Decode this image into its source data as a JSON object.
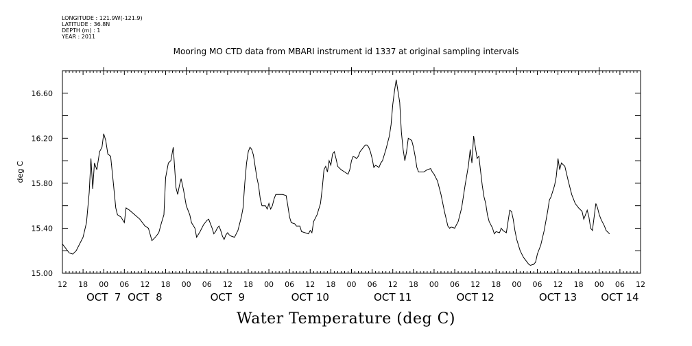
{
  "header": {
    "longitude": "LONGITUDE : 121.9W(-121.9)",
    "latitude": "LATITUDE : 36.8N",
    "depth": "DEPTH (m) : 1",
    "year": "YEAR : 2011"
  },
  "chart_data": {
    "type": "line",
    "title": "Mooring MO CTD data from MBARI instrument id 1337 at original sampling intervals",
    "xlabel": "Water Temperature (deg C)",
    "ylabel": "deg C",
    "ylim": [
      15.0,
      16.8
    ],
    "xlim_hours": [
      12,
      180
    ],
    "yticks": [
      15.0,
      15.4,
      15.8,
      16.2,
      16.6
    ],
    "ytick_labels": [
      "15.00",
      "15.40",
      "15.80",
      "16.20",
      "16.60"
    ],
    "hour_ticks": [
      "12",
      "18",
      "00",
      "06",
      "12",
      "18",
      "00",
      "06",
      "12",
      "18",
      "00",
      "06",
      "12",
      "18",
      "00",
      "06",
      "12",
      "18",
      "00",
      "06",
      "12",
      "18",
      "00",
      "06",
      "12",
      "18",
      "00",
      "06",
      "12"
    ],
    "day_labels": [
      {
        "label": "OCT  7",
        "hour": 24
      },
      {
        "label": "OCT  8",
        "hour": 36
      },
      {
        "label": "OCT  9",
        "hour": 60
      },
      {
        "label": "OCT 10",
        "hour": 84
      },
      {
        "label": "OCT 11",
        "hour": 108
      },
      {
        "label": "OCT 12",
        "hour": 132
      },
      {
        "label": "OCT 13",
        "hour": 156
      },
      {
        "label": "OCT 14",
        "hour": 174
      }
    ],
    "grid": false,
    "series": [
      {
        "color": "#000000",
        "points": [
          [
            12,
            15.26
          ],
          [
            13,
            15.22
          ],
          [
            14,
            15.18
          ],
          [
            15,
            15.17
          ],
          [
            16,
            15.2
          ],
          [
            17,
            15.26
          ],
          [
            18,
            15.32
          ],
          [
            19,
            15.45
          ],
          [
            19.8,
            15.72
          ],
          [
            20.3,
            16.02
          ],
          [
            20.8,
            15.75
          ],
          [
            21.3,
            15.98
          ],
          [
            22,
            15.92
          ],
          [
            22.8,
            16.08
          ],
          [
            23.5,
            16.12
          ],
          [
            24,
            16.24
          ],
          [
            24.6,
            16.18
          ],
          [
            25.2,
            16.06
          ],
          [
            26,
            16.04
          ],
          [
            26.8,
            15.8
          ],
          [
            27.5,
            15.58
          ],
          [
            28,
            15.52
          ],
          [
            29,
            15.5
          ],
          [
            30,
            15.45
          ],
          [
            30.5,
            15.58
          ],
          [
            31.5,
            15.56
          ],
          [
            33,
            15.52
          ],
          [
            34.5,
            15.48
          ],
          [
            36,
            15.42
          ],
          [
            37,
            15.4
          ],
          [
            38,
            15.29
          ],
          [
            39,
            15.32
          ],
          [
            40,
            15.36
          ],
          [
            40.8,
            15.45
          ],
          [
            41.5,
            15.52
          ],
          [
            42,
            15.85
          ],
          [
            42.8,
            15.98
          ],
          [
            43.5,
            16.0
          ],
          [
            44.2,
            16.12
          ],
          [
            45,
            15.76
          ],
          [
            45.5,
            15.7
          ],
          [
            46,
            15.78
          ],
          [
            46.5,
            15.84
          ],
          [
            47.2,
            15.74
          ],
          [
            48,
            15.6
          ],
          [
            49,
            15.52
          ],
          [
            49.5,
            15.45
          ],
          [
            50.5,
            15.4
          ],
          [
            51,
            15.32
          ],
          [
            52,
            15.37
          ],
          [
            53,
            15.43
          ],
          [
            54,
            15.47
          ],
          [
            54.5,
            15.48
          ],
          [
            55.5,
            15.4
          ],
          [
            56,
            15.35
          ],
          [
            56.5,
            15.37
          ],
          [
            57,
            15.4
          ],
          [
            57.5,
            15.42
          ],
          [
            58,
            15.38
          ],
          [
            58.5,
            15.33
          ],
          [
            59,
            15.3
          ],
          [
            59.5,
            15.34
          ],
          [
            60,
            15.36
          ],
          [
            60.5,
            15.34
          ],
          [
            61,
            15.33
          ],
          [
            62,
            15.32
          ],
          [
            63,
            15.38
          ],
          [
            64,
            15.5
          ],
          [
            64.5,
            15.58
          ],
          [
            65,
            15.8
          ],
          [
            65.5,
            15.98
          ],
          [
            66,
            16.08
          ],
          [
            66.5,
            16.12
          ],
          [
            67,
            16.1
          ],
          [
            67.5,
            16.05
          ],
          [
            68,
            15.95
          ],
          [
            68.5,
            15.85
          ],
          [
            69,
            15.78
          ],
          [
            69.5,
            15.66
          ],
          [
            70,
            15.6
          ],
          [
            71,
            15.6
          ],
          [
            71.5,
            15.57
          ],
          [
            72,
            15.62
          ],
          [
            72.5,
            15.57
          ],
          [
            73,
            15.6
          ],
          [
            73.5,
            15.66
          ],
          [
            74,
            15.7
          ],
          [
            75,
            15.7
          ],
          [
            76,
            15.7
          ],
          [
            77,
            15.69
          ],
          [
            77.5,
            15.6
          ],
          [
            78,
            15.5
          ],
          [
            78.5,
            15.45
          ],
          [
            79.5,
            15.44
          ],
          [
            80,
            15.42
          ],
          [
            81,
            15.42
          ],
          [
            81.5,
            15.37
          ],
          [
            82.5,
            15.36
          ],
          [
            83.5,
            15.35
          ],
          [
            84,
            15.38
          ],
          [
            84.5,
            15.36
          ],
          [
            85,
            15.46
          ],
          [
            86,
            15.52
          ],
          [
            87,
            15.62
          ],
          [
            87.5,
            15.75
          ],
          [
            88,
            15.92
          ],
          [
            88.5,
            15.95
          ],
          [
            89,
            15.9
          ],
          [
            89.5,
            16.0
          ],
          [
            90,
            15.96
          ],
          [
            90.5,
            16.06
          ],
          [
            91,
            16.08
          ],
          [
            91.5,
            16.02
          ],
          [
            92,
            15.95
          ],
          [
            93,
            15.92
          ],
          [
            94,
            15.9
          ],
          [
            95,
            15.88
          ],
          [
            95.5,
            15.92
          ],
          [
            96,
            16.0
          ],
          [
            96.5,
            16.04
          ],
          [
            97.5,
            16.02
          ],
          [
            98,
            16.04
          ],
          [
            98.5,
            16.08
          ],
          [
            99.5,
            16.12
          ],
          [
            100,
            16.14
          ],
          [
            100.5,
            16.14
          ],
          [
            101,
            16.12
          ],
          [
            101.5,
            16.08
          ],
          [
            102,
            16.02
          ],
          [
            102.5,
            15.94
          ],
          [
            103,
            15.96
          ],
          [
            104,
            15.94
          ],
          [
            104.5,
            15.98
          ],
          [
            105,
            16.0
          ],
          [
            105.5,
            16.05
          ],
          [
            106,
            16.1
          ],
          [
            106.5,
            16.16
          ],
          [
            107,
            16.22
          ],
          [
            107.5,
            16.32
          ],
          [
            108,
            16.5
          ],
          [
            108.5,
            16.62
          ],
          [
            109,
            16.72
          ],
          [
            109.5,
            16.62
          ],
          [
            110,
            16.52
          ],
          [
            110.5,
            16.25
          ],
          [
            111,
            16.1
          ],
          [
            111.5,
            16.0
          ],
          [
            112,
            16.08
          ],
          [
            112.5,
            16.2
          ],
          [
            113.5,
            16.18
          ],
          [
            114,
            16.12
          ],
          [
            114.5,
            16.04
          ],
          [
            115,
            15.94
          ],
          [
            115.5,
            15.9
          ],
          [
            117,
            15.9
          ],
          [
            118,
            15.92
          ],
          [
            119,
            15.93
          ],
          [
            119.5,
            15.9
          ],
          [
            120,
            15.88
          ],
          [
            121,
            15.82
          ],
          [
            122,
            15.7
          ],
          [
            123,
            15.55
          ],
          [
            124,
            15.42
          ],
          [
            124.5,
            15.4
          ],
          [
            125,
            15.41
          ],
          [
            126,
            15.4
          ],
          [
            127,
            15.46
          ],
          [
            128,
            15.58
          ],
          [
            129,
            15.78
          ],
          [
            130,
            15.96
          ],
          [
            130.5,
            16.1
          ],
          [
            131,
            15.98
          ],
          [
            131.5,
            16.22
          ],
          [
            132,
            16.12
          ],
          [
            132.5,
            16.02
          ],
          [
            133,
            16.04
          ],
          [
            134,
            15.78
          ],
          [
            134.5,
            15.68
          ],
          [
            135,
            15.62
          ],
          [
            135.5,
            15.52
          ],
          [
            136,
            15.46
          ],
          [
            137,
            15.4
          ],
          [
            137.5,
            15.35
          ],
          [
            138,
            15.37
          ],
          [
            139,
            15.36
          ],
          [
            139.5,
            15.4
          ],
          [
            140,
            15.38
          ],
          [
            141,
            15.36
          ],
          [
            141.5,
            15.46
          ],
          [
            142,
            15.56
          ],
          [
            142.5,
            15.55
          ],
          [
            143,
            15.48
          ],
          [
            143.5,
            15.38
          ],
          [
            144,
            15.3
          ],
          [
            145,
            15.2
          ],
          [
            146,
            15.14
          ],
          [
            147,
            15.1
          ],
          [
            147.5,
            15.08
          ],
          [
            148,
            15.07
          ],
          [
            149,
            15.08
          ],
          [
            149.5,
            15.1
          ],
          [
            150,
            15.17
          ],
          [
            151,
            15.25
          ],
          [
            152,
            15.38
          ],
          [
            153,
            15.55
          ],
          [
            153.5,
            15.65
          ],
          [
            154,
            15.68
          ],
          [
            155,
            15.78
          ],
          [
            155.5,
            15.86
          ],
          [
            156,
            16.02
          ],
          [
            156.5,
            15.92
          ],
          [
            157,
            15.98
          ],
          [
            158,
            15.95
          ],
          [
            159,
            15.82
          ],
          [
            160,
            15.7
          ],
          [
            161,
            15.62
          ],
          [
            162,
            15.58
          ],
          [
            163,
            15.55
          ],
          [
            163.5,
            15.48
          ],
          [
            164,
            15.52
          ],
          [
            164.5,
            15.56
          ],
          [
            165,
            15.5
          ],
          [
            165.5,
            15.4
          ],
          [
            166,
            15.38
          ],
          [
            166.5,
            15.5
          ],
          [
            167,
            15.62
          ],
          [
            167.5,
            15.58
          ],
          [
            168,
            15.52
          ],
          [
            168.5,
            15.48
          ],
          [
            169,
            15.45
          ],
          [
            169.5,
            15.42
          ],
          [
            170,
            15.38
          ],
          [
            171,
            15.35
          ]
        ]
      }
    ]
  }
}
